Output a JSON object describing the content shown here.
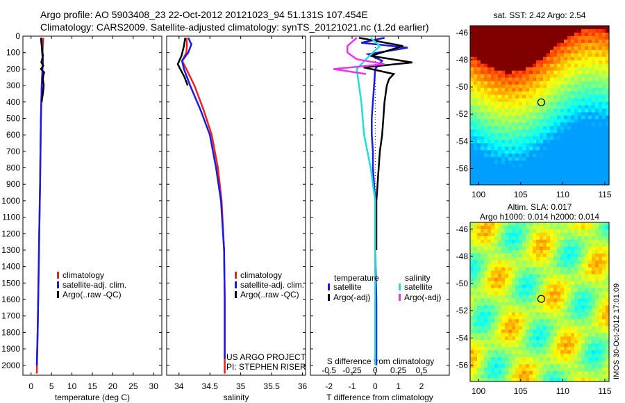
{
  "title_line1": "Argo profile: AO 5903408_23 22-Oct-2012 20121023_94 51.131S 107.454E",
  "title_line2": "Climatology: CARS2009. Satellite-adjusted climatology: synTS_20121021.nc (1.2d earlier)",
  "depth_ticks": [
    0,
    100,
    200,
    300,
    400,
    500,
    600,
    700,
    800,
    900,
    1000,
    1100,
    1200,
    1300,
    1400,
    1500,
    1600,
    1700,
    1800,
    1900,
    2000
  ],
  "colors": {
    "climatology": "#e8241c",
    "satellite": "#1a1ae0",
    "argo": "#000000",
    "sal_satellite": "#22dddd",
    "sal_argo": "#ee33ee"
  },
  "chart_data": [
    {
      "type": "line",
      "xlabel": "temperature (deg C)",
      "xticks": [
        0,
        5,
        10,
        15,
        20,
        25,
        30
      ],
      "xlim": [
        -2,
        32
      ],
      "ylim": [
        2060,
        0
      ],
      "legend": [
        "climatology",
        "satellite-adj. clim.",
        "Argo(..raw -QC)"
      ],
      "series": [
        {
          "name": "climatology",
          "x": [
            3.0,
            2.9,
            2.8,
            2.9,
            2.8,
            2.7,
            2.6,
            2.5,
            2.4,
            2.3,
            2.2,
            2.0,
            1.8,
            1.6,
            1.4
          ],
          "y": [
            10,
            50,
            100,
            150,
            200,
            250,
            300,
            400,
            500,
            700,
            900,
            1200,
            1500,
            1800,
            2050
          ]
        },
        {
          "name": "satellite-adj. clim.",
          "x": [
            2.5,
            2.6,
            2.7,
            2.9,
            2.8,
            2.7,
            2.6,
            2.5,
            2.4,
            2.3,
            2.2,
            2.0,
            1.8,
            1.6,
            1.4
          ],
          "y": [
            10,
            50,
            100,
            150,
            200,
            250,
            300,
            400,
            500,
            700,
            900,
            1200,
            1500,
            1800,
            2000
          ]
        },
        {
          "name": "Argo(..raw -QC)",
          "x": [
            2.4,
            2.6,
            2.9,
            2.5,
            3.0,
            2.4,
            3.2,
            3.0,
            2.9,
            3.1,
            2.9,
            2.7,
            2.6
          ],
          "y": [
            10,
            60,
            120,
            160,
            180,
            200,
            220,
            240,
            260,
            300,
            350,
            380,
            400
          ]
        }
      ]
    },
    {
      "type": "line",
      "xlabel": "salinity",
      "xticks": [
        34,
        34.5,
        35,
        35.5,
        36
      ],
      "xlim": [
        33.8,
        36.05
      ],
      "ylim": [
        2060,
        0
      ],
      "legend": [
        "climatology",
        "satellite-adj. clim.",
        "Argo(..raw -QC)"
      ],
      "annotations": [
        "US ARGO PROJECT",
        "PI: STEPHEN RISER"
      ],
      "series": [
        {
          "name": "climatology",
          "x": [
            34.12,
            34.13,
            34.12,
            34.05,
            34.12,
            34.25,
            34.4,
            34.53,
            34.63,
            34.69,
            34.73,
            34.74,
            34.74,
            34.74
          ],
          "y": [
            10,
            50,
            100,
            150,
            200,
            300,
            450,
            600,
            800,
            1000,
            1300,
            1600,
            1900,
            2050
          ]
        },
        {
          "name": "satellite-adj. clim.",
          "x": [
            34.15,
            34.2,
            34.15,
            34.05,
            34.08,
            34.18,
            34.35,
            34.5,
            34.6,
            34.68,
            34.73,
            34.74,
            34.74,
            34.74
          ],
          "y": [
            10,
            50,
            100,
            150,
            200,
            300,
            450,
            600,
            800,
            1000,
            1300,
            1600,
            1900,
            1960
          ]
        },
        {
          "name": "Argo(..raw -QC)",
          "x": [
            34.1,
            34.08,
            34.04,
            33.98,
            34.02,
            34.09,
            34.14
          ],
          "y": [
            10,
            60,
            120,
            170,
            200,
            250,
            300
          ]
        }
      ]
    },
    {
      "type": "line",
      "xlabel": "T difference from climatology",
      "xlabel2": "S difference from climatology",
      "xticks": [
        -2,
        -1,
        0,
        1,
        2
      ],
      "xticks_top": [
        -0.5,
        -0.25,
        0,
        0.25,
        0.5
      ],
      "xlim": [
        -2.8,
        3.2
      ],
      "ylim": [
        2060,
        0
      ],
      "legend_headers": [
        "temperature",
        "salinity"
      ],
      "legend": [
        "satellite",
        "Argo(-adj)",
        "satellite",
        "Argo(-adj)"
      ],
      "series": [
        {
          "name": "satellite",
          "x": [
            0.4,
            -0.6,
            1.4,
            -0.3,
            0.3,
            0.0,
            -0.05,
            -0.1,
            -0.15,
            -0.15,
            -0.1,
            -0.1,
            -0.05,
            0,
            0,
            0.05,
            0.05
          ],
          "y": [
            10,
            40,
            70,
            110,
            150,
            200,
            300,
            400,
            500,
            600,
            700,
            800,
            900,
            1000,
            1300,
            1600,
            2000
          ]
        },
        {
          "name": "Argo(-adj)",
          "x": [
            -0.7,
            1.2,
            -0.2,
            1.6,
            -0.5,
            0.8,
            0.6,
            0.5,
            0.4,
            0.35,
            0.3,
            0.2,
            0.15,
            0.1,
            0.05,
            0.05
          ],
          "y": [
            10,
            60,
            120,
            160,
            190,
            230,
            260,
            300,
            400,
            500,
            600,
            700,
            800,
            900,
            1000,
            1300
          ]
        },
        {
          "name": "satellite",
          "x": [
            -0.05,
            0.05,
            -0.1,
            -0.2,
            -0.15,
            -0.12,
            -0.05,
            0.0,
            0.0,
            0.0
          ],
          "y": [
            10,
            60,
            140,
            200,
            400,
            600,
            800,
            1000,
            1300,
            2000
          ]
        },
        {
          "name": "Argo(-adj)",
          "x": [
            -0.2,
            -0.3,
            -0.3,
            -0.2,
            0.1,
            -0.45,
            -0.1
          ],
          "y": [
            10,
            60,
            100,
            140,
            170,
            200,
            230
          ]
        }
      ]
    },
    {
      "type": "heatmap",
      "title": "sat. SST: 2.42  Argo: 2.54",
      "xticks": [
        100,
        105,
        110,
        115
      ],
      "yticks": [
        -46,
        -48,
        -50,
        -52,
        -54,
        -56
      ],
      "xlim": [
        99,
        115.5
      ],
      "ylim": [
        -57.2,
        -45.5
      ],
      "marker": [
        107.45,
        -51.13
      ]
    },
    {
      "type": "heatmap",
      "title": "Altim. SLA: 0.017",
      "subtitle": "Argo h1000: 0.014  h2000: 0.014",
      "xticks": [
        100,
        105,
        110,
        115
      ],
      "yticks": [
        -46,
        -48,
        -50,
        -52,
        -54,
        -56
      ],
      "xlim": [
        99,
        115.5
      ],
      "ylim": [
        -57.2,
        -45.5
      ],
      "marker": [
        107.45,
        -51.13
      ]
    }
  ],
  "imos_label": "IMOS 30-Oct-2012 17:01:09"
}
